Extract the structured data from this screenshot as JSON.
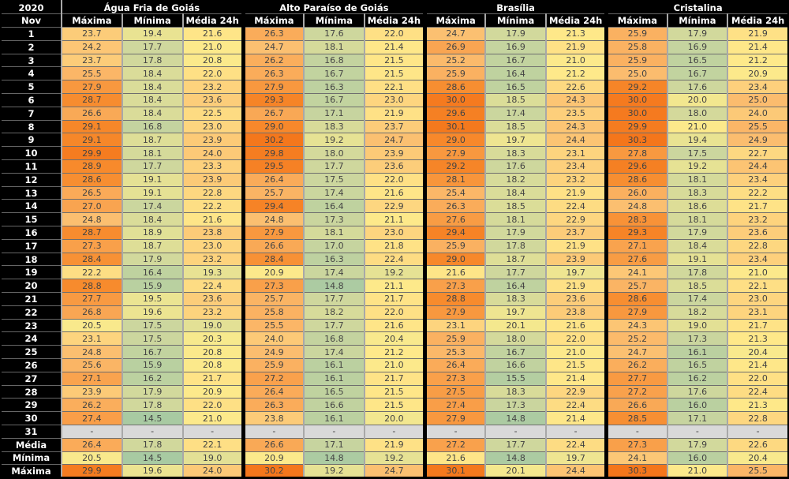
{
  "header": {
    "year": "2020",
    "month": "Nov"
  },
  "colors": {
    "header_bg": "#000000",
    "header_text": "#FFFFFF",
    "cell_text": "#444444",
    "grid_minor": "#A8A8A8",
    "grid_row": "#6E6E6E",
    "group_separator": "#000000"
  },
  "chart_data": {
    "type": "heatmap",
    "title": "Temperaturas diárias Nov 2020 (Máxima / Mínima / Média 24h por estação)",
    "legend_position": "none",
    "stations": [
      "Água Fria de Goiás",
      "Alto Paraíso de Goiás",
      "Brasília",
      "Cristalina"
    ],
    "measures": [
      "Máxima",
      "Mínima",
      "Média 24h"
    ],
    "color_scale": {
      "domain": [
        14.5,
        30.3
      ],
      "empty": "#D9D9D9",
      "stops": [
        {
          "v": 14.5,
          "c": "#A8CAA2"
        },
        {
          "v": 17.5,
          "c": "#CCD69E"
        },
        {
          "v": 20.3,
          "c": "#F7E98D"
        },
        {
          "v": 21.2,
          "c": "#FEE98A"
        },
        {
          "v": 23.0,
          "c": "#FDD57F"
        },
        {
          "v": 25.0,
          "c": "#FBBC6E"
        },
        {
          "v": 27.0,
          "c": "#F9A450"
        },
        {
          "v": 28.8,
          "c": "#F78B2D"
        },
        {
          "v": 30.3,
          "c": "#F4761B"
        }
      ]
    },
    "days": [
      {
        "label": "1",
        "values": [
          "23.7",
          "19.4",
          "21.6",
          "26.3",
          "17.6",
          "22.0",
          "24.7",
          "17.9",
          "21.3",
          "25.9",
          "17.9",
          "21.9"
        ]
      },
      {
        "label": "2",
        "values": [
          "24.2",
          "17.7",
          "21.0",
          "24.7",
          "18.1",
          "21.4",
          "26.9",
          "16.9",
          "21.9",
          "25.8",
          "16.9",
          "21.4"
        ]
      },
      {
        "label": "3",
        "values": [
          "23.7",
          "17.8",
          "20.8",
          "26.2",
          "16.8",
          "21.5",
          "25.2",
          "16.7",
          "21.0",
          "25.9",
          "16.5",
          "21.2"
        ]
      },
      {
        "label": "4",
        "values": [
          "25.5",
          "18.4",
          "22.0",
          "26.3",
          "16.7",
          "21.5",
          "25.9",
          "16.4",
          "21.2",
          "25.0",
          "16.7",
          "20.9"
        ]
      },
      {
        "label": "5",
        "values": [
          "27.9",
          "18.4",
          "23.2",
          "27.9",
          "16.3",
          "22.1",
          "28.6",
          "16.5",
          "22.6",
          "29.2",
          "17.6",
          "23.4"
        ]
      },
      {
        "label": "6",
        "values": [
          "28.7",
          "18.4",
          "23.6",
          "29.3",
          "16.7",
          "23.0",
          "30.0",
          "18.5",
          "24.3",
          "30.0",
          "20.0",
          "25.0"
        ]
      },
      {
        "label": "7",
        "values": [
          "26.6",
          "18.4",
          "22.5",
          "26.7",
          "17.1",
          "21.9",
          "29.6",
          "17.4",
          "23.5",
          "30.0",
          "18.0",
          "24.0"
        ]
      },
      {
        "label": "8",
        "values": [
          "29.1",
          "16.8",
          "23.0",
          "29.0",
          "18.3",
          "23.7",
          "30.1",
          "18.5",
          "24.3",
          "29.9",
          "21.0",
          "25.5"
        ]
      },
      {
        "label": "9",
        "values": [
          "29.1",
          "18.7",
          "23.9",
          "30.2",
          "19.2",
          "24.7",
          "29.0",
          "19.7",
          "24.4",
          "30.3",
          "19.4",
          "24.9"
        ]
      },
      {
        "label": "10",
        "values": [
          "29.9",
          "18.1",
          "24.0",
          "29.8",
          "18.0",
          "23.9",
          "27.9",
          "18.3",
          "23.1",
          "27.8",
          "17.5",
          "22.7"
        ]
      },
      {
        "label": "11",
        "values": [
          "28.9",
          "17.7",
          "23.3",
          "29.5",
          "17.7",
          "23.6",
          "29.2",
          "17.6",
          "23.4",
          "29.6",
          "19.2",
          "24.4"
        ]
      },
      {
        "label": "12",
        "values": [
          "28.6",
          "19.1",
          "23.9",
          "26.4",
          "17.5",
          "22.0",
          "28.1",
          "18.2",
          "23.2",
          "28.6",
          "18.1",
          "23.4"
        ]
      },
      {
        "label": "13",
        "values": [
          "26.5",
          "19.1",
          "22.8",
          "25.7",
          "17.4",
          "21.6",
          "25.4",
          "18.4",
          "21.9",
          "26.0",
          "18.3",
          "22.2"
        ]
      },
      {
        "label": "14",
        "values": [
          "27.0",
          "17.4",
          "22.2",
          "29.4",
          "16.4",
          "22.9",
          "26.3",
          "18.5",
          "22.4",
          "24.8",
          "18.6",
          "21.7"
        ]
      },
      {
        "label": "15",
        "values": [
          "24.8",
          "18.4",
          "21.6",
          "24.8",
          "17.3",
          "21.1",
          "27.6",
          "18.1",
          "22.9",
          "28.3",
          "18.1",
          "23.2"
        ]
      },
      {
        "label": "16",
        "values": [
          "28.7",
          "18.9",
          "23.8",
          "27.9",
          "18.1",
          "23.0",
          "29.4",
          "17.9",
          "23.7",
          "29.3",
          "17.9",
          "23.6"
        ]
      },
      {
        "label": "17",
        "values": [
          "27.3",
          "18.7",
          "23.0",
          "26.6",
          "17.0",
          "21.8",
          "25.9",
          "17.8",
          "21.9",
          "27.1",
          "18.4",
          "22.8"
        ]
      },
      {
        "label": "18",
        "values": [
          "28.4",
          "17.9",
          "23.2",
          "28.4",
          "16.3",
          "22.4",
          "29.0",
          "18.7",
          "23.9",
          "27.6",
          "19.1",
          "23.4"
        ]
      },
      {
        "label": "19",
        "values": [
          "22.2",
          "16.4",
          "19.3",
          "20.9",
          "17.4",
          "19.2",
          "21.6",
          "17.7",
          "19.7",
          "24.1",
          "17.8",
          "21.0"
        ]
      },
      {
        "label": "20",
        "values": [
          "28.8",
          "15.9",
          "22.4",
          "27.3",
          "14.8",
          "21.1",
          "27.3",
          "16.4",
          "21.9",
          "25.7",
          "18.5",
          "22.1"
        ]
      },
      {
        "label": "21",
        "values": [
          "27.7",
          "19.5",
          "23.6",
          "25.7",
          "17.7",
          "21.7",
          "28.8",
          "18.3",
          "23.6",
          "28.6",
          "17.4",
          "23.0"
        ]
      },
      {
        "label": "22",
        "values": [
          "26.8",
          "19.6",
          "23.2",
          "25.8",
          "18.2",
          "22.0",
          "27.9",
          "19.7",
          "23.8",
          "27.9",
          "18.2",
          "23.1"
        ]
      },
      {
        "label": "23",
        "values": [
          "20.5",
          "17.5",
          "19.0",
          "25.5",
          "17.7",
          "21.6",
          "23.1",
          "20.1",
          "21.6",
          "24.3",
          "19.0",
          "21.7"
        ]
      },
      {
        "label": "24",
        "values": [
          "23.1",
          "17.5",
          "20.3",
          "24.0",
          "16.8",
          "20.4",
          "25.9",
          "18.0",
          "22.0",
          "25.2",
          "17.3",
          "21.3"
        ]
      },
      {
        "label": "25",
        "values": [
          "24.8",
          "16.7",
          "20.8",
          "24.9",
          "17.4",
          "21.2",
          "25.3",
          "16.7",
          "21.0",
          "24.7",
          "16.1",
          "20.4"
        ]
      },
      {
        "label": "26",
        "values": [
          "25.6",
          "15.9",
          "20.8",
          "25.9",
          "16.1",
          "21.0",
          "26.4",
          "16.6",
          "21.5",
          "26.2",
          "16.5",
          "21.4"
        ]
      },
      {
        "label": "27",
        "values": [
          "27.1",
          "16.2",
          "21.7",
          "27.2",
          "16.1",
          "21.7",
          "27.3",
          "15.5",
          "21.4",
          "27.7",
          "16.2",
          "22.0"
        ]
      },
      {
        "label": "28",
        "values": [
          "23.9",
          "17.9",
          "20.9",
          "26.4",
          "16.5",
          "21.5",
          "27.5",
          "18.3",
          "22.9",
          "27.2",
          "17.6",
          "22.4"
        ]
      },
      {
        "label": "29",
        "values": [
          "26.2",
          "17.8",
          "22.0",
          "26.3",
          "16.6",
          "21.5",
          "27.4",
          "17.3",
          "22.4",
          "26.6",
          "16.0",
          "21.3"
        ]
      },
      {
        "label": "30",
        "values": [
          "27.4",
          "14.5",
          "21.0",
          "23.8",
          "16.1",
          "20.0",
          "27.9",
          "14.8",
          "21.4",
          "28.5",
          "17.1",
          "22.8"
        ]
      },
      {
        "label": "31",
        "values": [
          "-",
          "-",
          "-",
          "-",
          "-",
          "-",
          "-",
          "-",
          "-",
          "-",
          "-",
          "-"
        ]
      }
    ],
    "summary": [
      {
        "label": "Média",
        "values": [
          "26.4",
          "17.8",
          "22.1",
          "26.6",
          "17.1",
          "21.9",
          "27.2",
          "17.7",
          "22.4",
          "27.3",
          "17.9",
          "22.6"
        ]
      },
      {
        "label": "Mínima",
        "values": [
          "20.5",
          "14.5",
          "19.0",
          "20.9",
          "14.8",
          "19.2",
          "21.6",
          "14.8",
          "19.7",
          "24.1",
          "16.0",
          "20.4"
        ]
      },
      {
        "label": "Máxima",
        "values": [
          "29.9",
          "19.6",
          "24.0",
          "30.2",
          "19.2",
          "24.7",
          "30.1",
          "20.1",
          "24.4",
          "30.3",
          "21.0",
          "25.5"
        ]
      }
    ]
  }
}
